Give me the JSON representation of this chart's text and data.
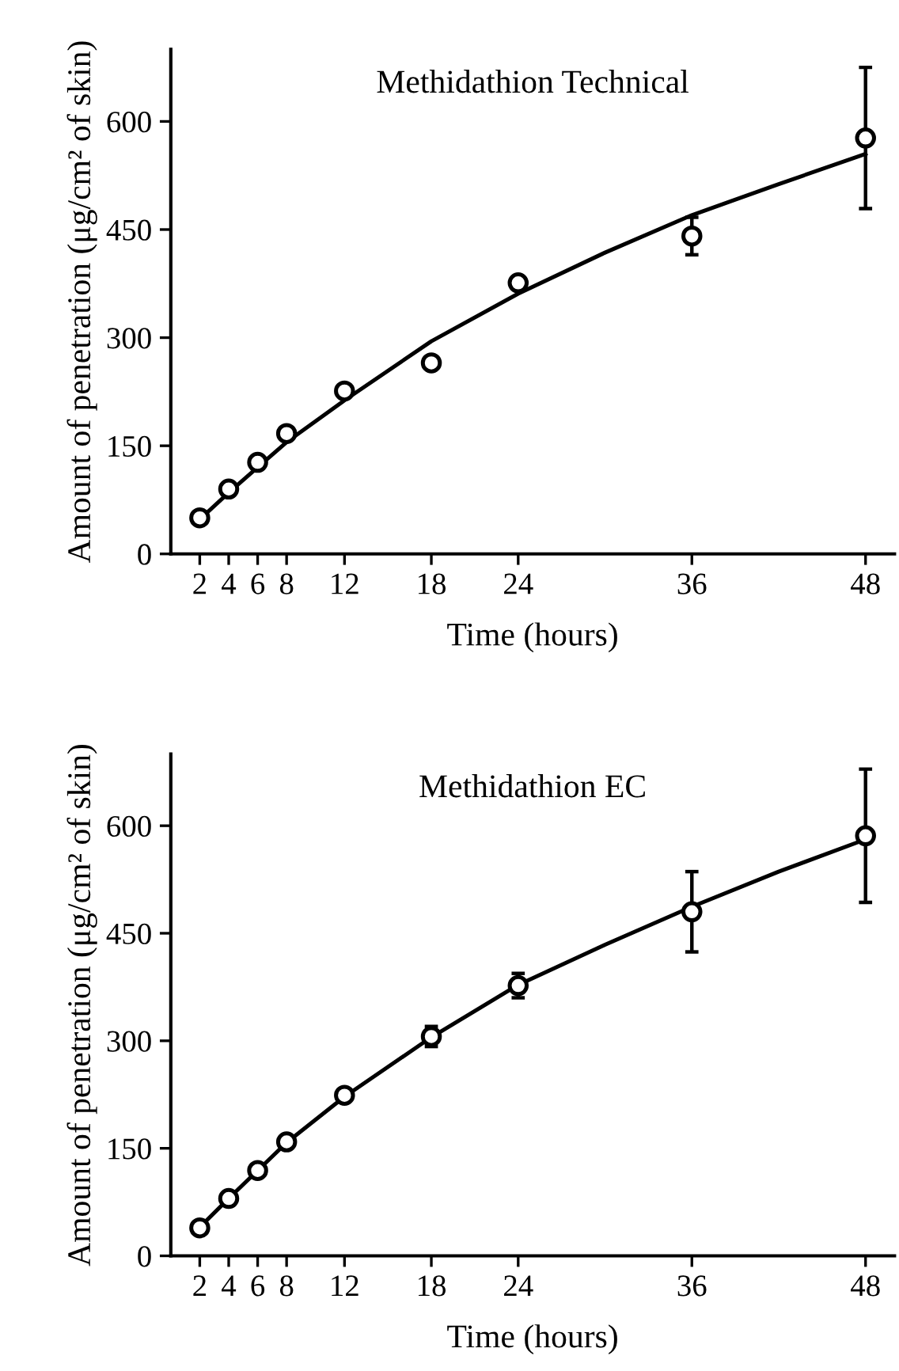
{
  "chart_data": [
    {
      "type": "scatter",
      "title": "Methidathion Technical",
      "xlabel": "Time (hours)",
      "ylabel": "Amount of penetration (μg/cm² of skin)",
      "xlim": [
        0,
        50
      ],
      "xticks": [
        2,
        4,
        6,
        8,
        12,
        18,
        24,
        36,
        48
      ],
      "ylim": [
        0,
        700
      ],
      "yticks": [
        0,
        150,
        300,
        450,
        600
      ],
      "grid": false,
      "legend": false,
      "series": [
        {
          "type": "scatter",
          "marker": "circle",
          "color": "#000000",
          "x": [
            2,
            4,
            6,
            8,
            12,
            18,
            24,
            36,
            48
          ],
          "values": [
            50,
            90,
            127,
            167,
            226,
            265,
            376,
            441,
            577
          ],
          "errors": [
            null,
            null,
            null,
            null,
            null,
            null,
            null,
            26,
            98
          ]
        },
        {
          "type": "line",
          "marker": "none",
          "line_style": "solid",
          "color": "#000000",
          "x": [
            2,
            4,
            6,
            8,
            12,
            18,
            24,
            30,
            36,
            42,
            48
          ],
          "values": [
            48,
            85,
            120,
            155,
            213,
            295,
            361,
            418,
            470,
            513,
            555
          ]
        }
      ]
    },
    {
      "type": "scatter",
      "title": "Methidathion EC",
      "xlabel": "Time (hours)",
      "ylabel": "Amount of penetration (μg/cm² of skin)",
      "xlim": [
        0,
        50
      ],
      "xticks": [
        2,
        4,
        6,
        8,
        12,
        18,
        24,
        36,
        48
      ],
      "ylim": [
        0,
        700
      ],
      "yticks": [
        0,
        150,
        300,
        450,
        600
      ],
      "grid": false,
      "legend": false,
      "series": [
        {
          "type": "scatter",
          "marker": "circle",
          "color": "#000000",
          "x": [
            2,
            4,
            6,
            8,
            12,
            18,
            24,
            36,
            48
          ],
          "values": [
            39,
            80,
            119,
            159,
            224,
            306,
            377,
            480,
            586
          ],
          "errors": [
            null,
            null,
            null,
            null,
            null,
            14,
            17,
            56,
            93
          ]
        },
        {
          "type": "line",
          "marker": "none",
          "line_style": "solid",
          "color": "#000000",
          "x": [
            2,
            4,
            6,
            8,
            12,
            18,
            24,
            30,
            36,
            42,
            48
          ],
          "values": [
            40,
            80,
            119,
            158,
            222,
            305,
            378,
            434,
            487,
            536,
            581
          ]
        }
      ]
    }
  ]
}
